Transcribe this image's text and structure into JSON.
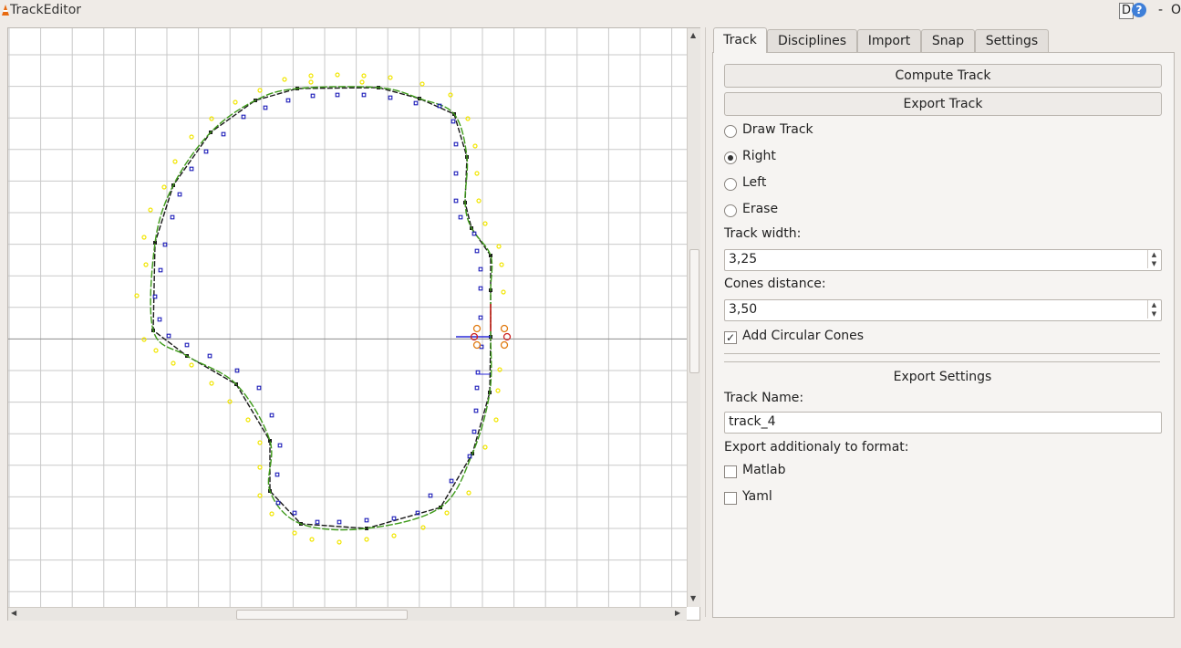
{
  "window": {
    "title": "TrackEditor",
    "controls": {
      "d_label": "D",
      "help_label": "?",
      "minimize": "-",
      "restore": "O"
    }
  },
  "canvas": {
    "colors": {
      "grid": "#c9c9c9",
      "axis": "#8c8c8c",
      "track_line": "#1a1a1a",
      "smooth_curve": "#3e9a1a",
      "yellow_cones": "#f2e600",
      "blue_cones": "#1a1ab8",
      "orange_cones": "#e07a10",
      "start_marker": "#cc2222"
    }
  },
  "tabs": [
    {
      "label": "Track",
      "active": true
    },
    {
      "label": "Disciplines",
      "active": false
    },
    {
      "label": "Import",
      "active": false
    },
    {
      "label": "Snap",
      "active": false
    },
    {
      "label": "Settings",
      "active": false
    }
  ],
  "panel": {
    "compute_button": "Compute Track",
    "export_button": "Export Track",
    "modes": [
      {
        "label": "Draw Track",
        "selected": false
      },
      {
        "label": "Right",
        "selected": true
      },
      {
        "label": "Left",
        "selected": false
      },
      {
        "label": "Erase",
        "selected": false
      }
    ],
    "track_width_label": "Track width:",
    "track_width_value": "3,25",
    "cones_distance_label": "Cones distance:",
    "cones_distance_value": "3,50",
    "circular_cones": {
      "label": "Add Circular Cones",
      "checked": true
    },
    "export_settings_title": "Export Settings",
    "track_name_label": "Track Name:",
    "track_name_value": "track_4",
    "export_format_label": "Export additionaly to format:",
    "formats": [
      {
        "label": "Matlab",
        "checked": false
      },
      {
        "label": "Yaml",
        "checked": false
      }
    ]
  }
}
